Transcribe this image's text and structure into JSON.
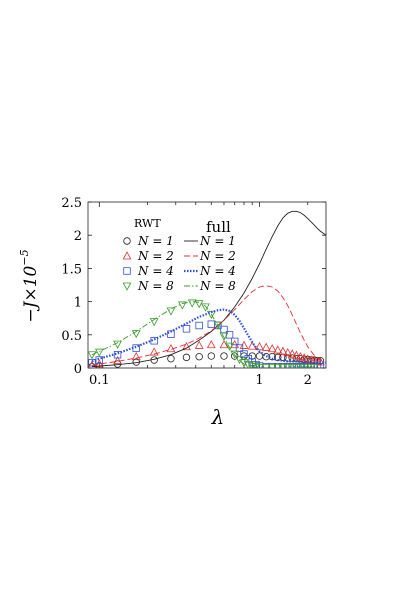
{
  "chart_data": {
    "type": "line",
    "xscale": "log",
    "xlabel": "λ",
    "ylabel": "−J×10",
    "ylabel_exponent": "−5",
    "xlim": [
      0.085,
      2.6
    ],
    "ylim": [
      0,
      2.5
    ],
    "xticks": [
      0.1,
      1,
      2
    ],
    "xtick_labels": [
      "0.1",
      "1",
      "2"
    ],
    "yticks": [
      0,
      0.5,
      1,
      1.5,
      2,
      2.5
    ],
    "ytick_labels": [
      "0",
      "0.5",
      "1",
      "1.5",
      "2",
      "2.5"
    ],
    "grid": false,
    "legend_placement": "top-left",
    "legend_rwt_title": "RWT",
    "legend_full_title": "full",
    "series": [
      {
        "name": "N = 1",
        "group": "RWT",
        "marker": "circle",
        "color": "#222222",
        "x": [
          0.09,
          0.1,
          0.13,
          0.17,
          0.22,
          0.28,
          0.35,
          0.42,
          0.5,
          0.6,
          0.7,
          0.8,
          0.9,
          1.0,
          1.1,
          1.2,
          1.3,
          1.4,
          1.5,
          1.6,
          1.7,
          1.8,
          1.9,
          2.0,
          2.1,
          2.2,
          2.3,
          2.4
        ],
        "y": [
          0.02,
          0.03,
          0.06,
          0.09,
          0.12,
          0.14,
          0.16,
          0.17,
          0.18,
          0.18,
          0.18,
          0.18,
          0.18,
          0.18,
          0.17,
          0.17,
          0.16,
          0.16,
          0.15,
          0.15,
          0.14,
          0.14,
          0.13,
          0.13,
          0.12,
          0.12,
          0.11,
          0.11
        ]
      },
      {
        "name": "N = 2",
        "group": "RWT",
        "marker": "triangle-up",
        "color": "#e03030",
        "x": [
          0.09,
          0.1,
          0.13,
          0.17,
          0.22,
          0.28,
          0.35,
          0.42,
          0.5,
          0.6,
          0.7,
          0.8,
          0.9,
          1.0,
          1.1,
          1.2,
          1.3,
          1.4,
          1.5,
          1.6,
          1.7,
          1.8,
          1.9,
          2.0,
          2.1,
          2.2,
          2.3,
          2.4
        ],
        "y": [
          0.04,
          0.06,
          0.11,
          0.17,
          0.24,
          0.29,
          0.32,
          0.34,
          0.35,
          0.35,
          0.35,
          0.34,
          0.33,
          0.32,
          0.31,
          0.29,
          0.27,
          0.25,
          0.23,
          0.21,
          0.19,
          0.17,
          0.15,
          0.13,
          0.12,
          0.11,
          0.1,
          0.09
        ]
      },
      {
        "name": "N = 4",
        "group": "RWT",
        "marker": "square",
        "color": "#2f4fd8",
        "x": [
          0.09,
          0.1,
          0.13,
          0.17,
          0.22,
          0.28,
          0.35,
          0.42,
          0.5,
          0.55,
          0.6,
          0.65,
          0.7,
          0.75,
          0.8,
          0.85,
          0.9,
          0.95,
          1.0,
          1.1,
          1.2,
          1.3,
          1.4,
          1.5,
          1.6,
          1.7,
          1.8,
          1.9,
          2.0,
          2.1,
          2.2,
          2.3,
          2.4
        ],
        "y": [
          0.08,
          0.12,
          0.2,
          0.3,
          0.41,
          0.51,
          0.59,
          0.64,
          0.66,
          0.64,
          0.58,
          0.5,
          0.4,
          0.3,
          0.21,
          0.14,
          0.09,
          0.05,
          0.03,
          0.02,
          0.02,
          0.02,
          0.02,
          0.02,
          0.02,
          0.02,
          0.02,
          0.02,
          0.02,
          0.02,
          0.02,
          0.02,
          0.02
        ]
      },
      {
        "name": "N = 8",
        "group": "RWT",
        "marker": "triangle-down",
        "color": "#3a9c2a",
        "x": [
          0.09,
          0.1,
          0.13,
          0.17,
          0.22,
          0.28,
          0.33,
          0.38,
          0.42,
          0.46,
          0.5,
          0.55,
          0.6,
          0.65,
          0.7,
          0.75,
          0.8,
          0.85,
          0.9,
          0.95,
          1.0,
          1.1,
          1.2,
          1.3,
          1.4,
          1.5,
          1.6,
          1.7,
          1.8,
          1.9,
          2.0,
          2.1,
          2.2
        ],
        "y": [
          0.2,
          0.24,
          0.36,
          0.52,
          0.7,
          0.86,
          0.95,
          0.98,
          0.97,
          0.92,
          0.81,
          0.65,
          0.48,
          0.33,
          0.21,
          0.13,
          0.08,
          0.05,
          0.03,
          0.02,
          0.01,
          0.01,
          0.01,
          0.01,
          0.01,
          0.01,
          0.01,
          0.01,
          0.01,
          0.01,
          0.01,
          0.01,
          0.01
        ]
      },
      {
        "name": "N = 1",
        "group": "full",
        "style": "solid",
        "color": "#222222",
        "x": [
          0.09,
          0.1,
          0.13,
          0.17,
          0.22,
          0.28,
          0.35,
          0.42,
          0.5,
          0.6,
          0.7,
          0.8,
          0.9,
          1.0,
          1.1,
          1.2,
          1.3,
          1.4,
          1.5,
          1.6,
          1.7,
          1.8,
          1.9,
          2.0,
          2.1,
          2.2,
          2.3,
          2.4,
          2.5,
          2.6
        ],
        "y": [
          0.02,
          0.03,
          0.05,
          0.08,
          0.13,
          0.2,
          0.3,
          0.42,
          0.55,
          0.72,
          0.92,
          1.13,
          1.35,
          1.57,
          1.79,
          1.98,
          2.14,
          2.26,
          2.33,
          2.36,
          2.36,
          2.34,
          2.3,
          2.25,
          2.2,
          2.15,
          2.1,
          2.06,
          2.03,
          2.0
        ]
      },
      {
        "name": "N = 2",
        "group": "full",
        "style": "dashed",
        "color": "#e03030",
        "x": [
          0.09,
          0.1,
          0.13,
          0.17,
          0.22,
          0.28,
          0.35,
          0.42,
          0.5,
          0.6,
          0.7,
          0.8,
          0.9,
          1.0,
          1.1,
          1.2,
          1.3,
          1.4,
          1.5,
          1.6,
          1.7,
          1.8,
          1.9,
          2.0,
          2.1,
          2.2,
          2.3,
          2.4,
          2.5,
          2.6
        ],
        "y": [
          0.04,
          0.06,
          0.1,
          0.15,
          0.21,
          0.28,
          0.36,
          0.45,
          0.56,
          0.72,
          0.88,
          1.03,
          1.15,
          1.22,
          1.24,
          1.22,
          1.16,
          1.06,
          0.94,
          0.8,
          0.66,
          0.53,
          0.42,
          0.32,
          0.25,
          0.19,
          0.15,
          0.12,
          0.1,
          0.08
        ]
      },
      {
        "name": "N = 4",
        "group": "full",
        "style": "dotted",
        "color": "#2f4fd8",
        "x": [
          0.09,
          0.1,
          0.13,
          0.17,
          0.22,
          0.28,
          0.35,
          0.42,
          0.5,
          0.55,
          0.6,
          0.65,
          0.7,
          0.75,
          0.8,
          0.85,
          0.9,
          0.95,
          1.0,
          1.1,
          1.2,
          1.3,
          1.4,
          1.5,
          1.6,
          1.7,
          1.8,
          1.9,
          2.0,
          2.1,
          2.2,
          2.3,
          2.4,
          2.5,
          2.6
        ],
        "y": [
          0.1,
          0.14,
          0.22,
          0.32,
          0.43,
          0.55,
          0.67,
          0.77,
          0.84,
          0.87,
          0.88,
          0.86,
          0.8,
          0.71,
          0.6,
          0.49,
          0.39,
          0.31,
          0.25,
          0.18,
          0.14,
          0.12,
          0.11,
          0.1,
          0.1,
          0.1,
          0.09,
          0.09,
          0.09,
          0.08,
          0.08,
          0.08,
          0.08,
          0.08,
          0.08
        ]
      },
      {
        "name": "N = 8",
        "group": "full",
        "style": "dashdot",
        "color": "#3a9c2a",
        "x": [
          0.09,
          0.1,
          0.13,
          0.17,
          0.22,
          0.28,
          0.33,
          0.38,
          0.42,
          0.46,
          0.5,
          0.55,
          0.6,
          0.65,
          0.7,
          0.75,
          0.8,
          0.85,
          0.9,
          0.95,
          1.0
        ],
        "y": [
          0.2,
          0.25,
          0.38,
          0.55,
          0.73,
          0.89,
          0.97,
          1.0,
          0.99,
          0.93,
          0.81,
          0.64,
          0.46,
          0.31,
          0.19,
          0.11,
          0.06,
          0.03,
          0.02,
          0.01,
          0.01
        ]
      }
    ]
  }
}
